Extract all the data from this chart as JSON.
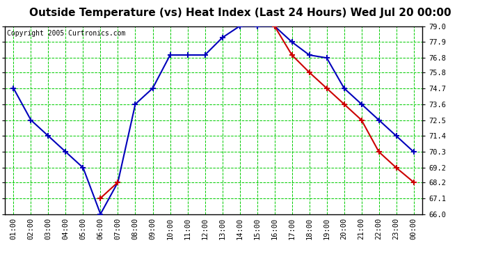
{
  "title": "Outside Temperature (vs) Heat Index (Last 24 Hours) Wed Jul 20 00:00",
  "copyright": "Copyright 2005 Curtronics.com",
  "x_labels": [
    "01:00",
    "02:00",
    "03:00",
    "04:00",
    "05:00",
    "06:00",
    "07:00",
    "08:00",
    "09:00",
    "10:00",
    "11:00",
    "12:00",
    "13:00",
    "14:00",
    "15:00",
    "16:00",
    "17:00",
    "18:00",
    "19:00",
    "20:00",
    "21:00",
    "22:00",
    "23:00",
    "00:00"
  ],
  "blue_y": [
    74.7,
    72.5,
    71.4,
    70.3,
    69.2,
    66.0,
    68.2,
    73.6,
    74.7,
    77.0,
    77.0,
    77.0,
    78.2,
    79.0,
    79.0,
    79.0,
    77.9,
    77.0,
    76.8,
    74.7,
    73.6,
    72.5,
    71.4,
    70.3
  ],
  "red_y": [
    null,
    null,
    null,
    null,
    null,
    67.1,
    68.2,
    null,
    null,
    null,
    null,
    null,
    null,
    null,
    null,
    79.0,
    77.0,
    75.8,
    74.7,
    73.6,
    72.5,
    70.3,
    69.2,
    68.2
  ],
  "blue_color": "#0000bb",
  "red_color": "#cc0000",
  "bg_color": "#ffffff",
  "plot_bg_color": "#ffffff",
  "grid_color": "#00cc00",
  "grid_vert_color": "#888888",
  "y_min": 66.0,
  "y_max": 79.0,
  "y_ticks": [
    66.0,
    67.1,
    68.2,
    69.2,
    70.3,
    71.4,
    72.5,
    73.6,
    74.7,
    75.8,
    76.8,
    77.9,
    79.0
  ],
  "title_fontsize": 11,
  "copyright_fontsize": 7,
  "tick_fontsize": 7.5
}
